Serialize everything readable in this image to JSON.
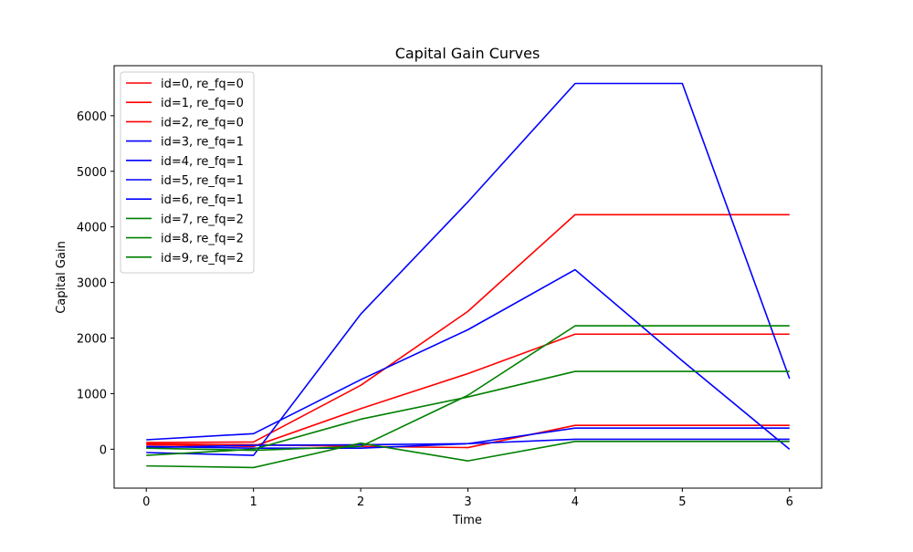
{
  "chart_data": {
    "type": "line",
    "title": "Capital Gain Curves",
    "xlabel": "Time",
    "ylabel": "Capital Gain",
    "xlim": [
      -0.3,
      6.3
    ],
    "ylim": [
      -700,
      6900
    ],
    "xticks": [
      0,
      1,
      2,
      3,
      4,
      5,
      6
    ],
    "yticks": [
      0,
      1000,
      2000,
      3000,
      4000,
      5000,
      6000
    ],
    "grid": false,
    "legend_position": "top-left",
    "x": [
      0,
      1,
      2,
      3,
      4,
      5,
      6
    ],
    "series": [
      {
        "name": "id=0, re_fq=0",
        "color": "#ff0000",
        "values": [
          120,
          130,
          1150,
          2480,
          4220,
          4220,
          4220
        ]
      },
      {
        "name": "id=1, re_fq=0",
        "color": "#ff0000",
        "values": [
          80,
          50,
          730,
          1360,
          2070,
          2070,
          2070
        ]
      },
      {
        "name": "id=2, re_fq=0",
        "color": "#ff0000",
        "values": [
          100,
          80,
          50,
          30,
          430,
          430,
          430
        ]
      },
      {
        "name": "id=3, re_fq=1",
        "color": "#0000ff",
        "values": [
          -60,
          -110,
          2430,
          4450,
          6580,
          6580,
          1270
        ]
      },
      {
        "name": "id=4, re_fq=1",
        "color": "#0000ff",
        "values": [
          170,
          280,
          1250,
          2150,
          3230,
          1590,
          0
        ]
      },
      {
        "name": "id=5, re_fq=1",
        "color": "#0000ff",
        "values": [
          50,
          20,
          20,
          100,
          380,
          380,
          380
        ]
      },
      {
        "name": "id=6, re_fq=1",
        "color": "#0000ff",
        "values": [
          30,
          70,
          80,
          100,
          180,
          180,
          180
        ]
      },
      {
        "name": "id=7, re_fq=2",
        "color": "#008000",
        "values": [
          -300,
          -330,
          110,
          -210,
          140,
          140,
          140
        ]
      },
      {
        "name": "id=8, re_fq=2",
        "color": "#008000",
        "values": [
          -110,
          0,
          540,
          940,
          1400,
          1400,
          1400
        ]
      },
      {
        "name": "id=9, re_fq=2",
        "color": "#008000",
        "values": [
          20,
          -20,
          50,
          970,
          2220,
          2220,
          2220
        ]
      }
    ]
  }
}
